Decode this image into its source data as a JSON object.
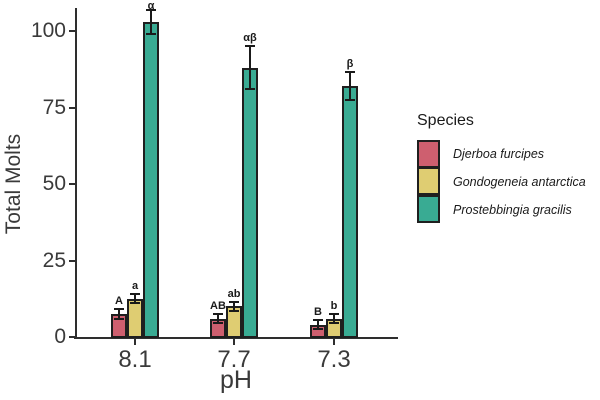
{
  "figure": {
    "background": "#ffffff",
    "axis_color": "#2e2e2e",
    "text_color": "#3a3a3a"
  },
  "chart_data": {
    "type": "bar",
    "title": "",
    "xlabel": "pH",
    "ylabel": "Total Molts",
    "categories": [
      "8.1",
      "7.7",
      "7.3"
    ],
    "series": [
      {
        "name": "Djerboa furcipes",
        "color": "#CE5F6F",
        "values": [
          7.5,
          6,
          4
        ],
        "errors": [
          1.5,
          1.5,
          1.5
        ],
        "sig_letters": [
          "A",
          "AB",
          "B"
        ]
      },
      {
        "name": "Gondogeneia antarctica",
        "color": "#DFCD72",
        "values": [
          12.5,
          10,
          6
        ],
        "errors": [
          1.5,
          1.5,
          1.5
        ],
        "sig_letters": [
          "a",
          "ab",
          "b"
        ]
      },
      {
        "name": "Prostebbingia gracilis",
        "color": "#39AB93",
        "values": [
          103,
          88,
          82
        ],
        "errors": [
          4,
          7,
          4.5
        ],
        "sig_letters": [
          "α",
          "αβ",
          "β"
        ]
      }
    ],
    "yticks": [
      0,
      25,
      50,
      75,
      100
    ],
    "ylim": [
      0,
      110
    ],
    "grid": false,
    "error_bars": true,
    "bar_outline_color": "#1f1f1f",
    "legend": {
      "title": "Species",
      "position": "right",
      "entries": [
        "Djerboa furcipes",
        "Gondogeneia antarctica",
        "Prostebbingia gracilis"
      ]
    }
  }
}
